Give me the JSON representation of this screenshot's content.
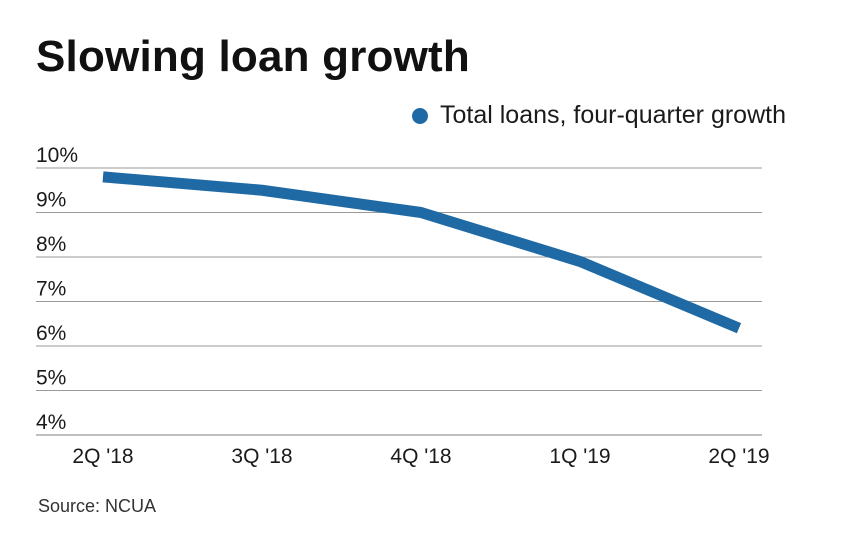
{
  "title": "Slowing loan growth",
  "source": "Source: NCUA",
  "legend": {
    "label": "Total loans, four-quarter growth"
  },
  "colors": {
    "series": "#1f6aa5",
    "grid": "#9a9a9a",
    "text": "#1a1a1a"
  },
  "chart_data": {
    "type": "line",
    "title": "Slowing loan growth",
    "categories": [
      "2Q '18",
      "3Q '18",
      "4Q '18",
      "1Q '19",
      "2Q '19"
    ],
    "series": [
      {
        "name": "Total loans, four-quarter growth",
        "values": [
          9.8,
          9.5,
          9.0,
          7.9,
          6.4
        ]
      }
    ],
    "y_ticks": [
      "10%",
      "9%",
      "8%",
      "7%",
      "6%",
      "5%",
      "4%"
    ],
    "y_tick_values": [
      10,
      9,
      8,
      7,
      6,
      5,
      4
    ],
    "ylim": [
      4,
      10
    ],
    "grid": true,
    "legend_position": "top-right",
    "xlabel": "",
    "ylabel": ""
  }
}
